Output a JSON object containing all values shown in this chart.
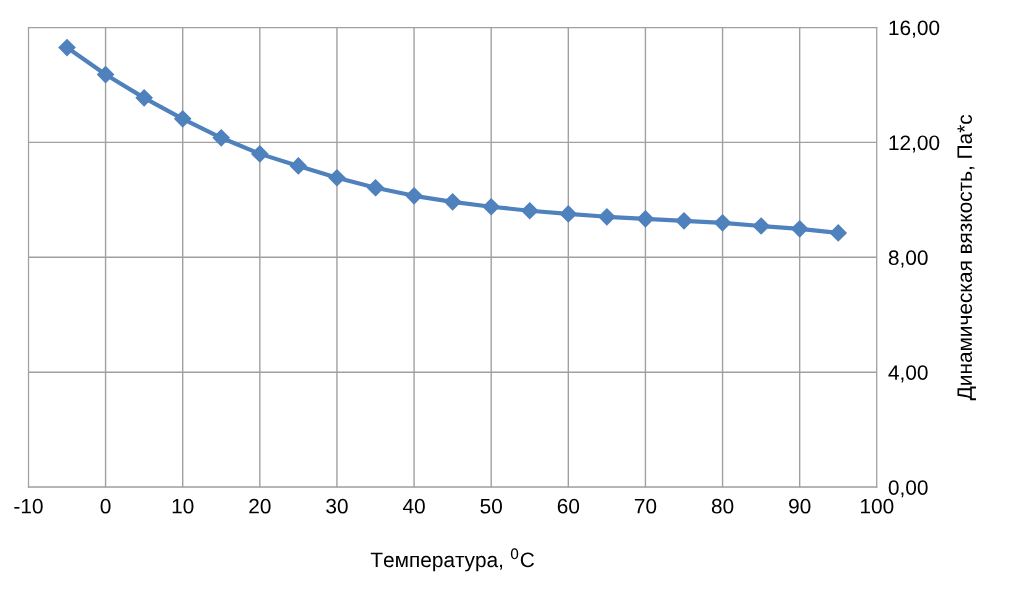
{
  "chart_data": {
    "type": "line",
    "xlabel": "Температура, $^{0}$C",
    "ylabel": "Динамическая вязкость, Па*с",
    "x": [
      -5,
      0,
      5,
      10,
      15,
      20,
      25,
      30,
      35,
      40,
      45,
      50,
      55,
      60,
      65,
      70,
      75,
      80,
      85,
      90,
      95
    ],
    "series": [
      {
        "color": "#4f81bd",
        "values": [
          15.3,
          14.36,
          13.55,
          12.82,
          12.16,
          11.6,
          11.18,
          10.77,
          10.42,
          10.14,
          9.93,
          9.76,
          9.62,
          9.51,
          9.41,
          9.34,
          9.27,
          9.2,
          9.09,
          8.99,
          8.85
        ]
      }
    ],
    "xlim": [
      -10,
      100
    ],
    "xticks": [
      -10,
      0,
      10,
      20,
      30,
      40,
      50,
      60,
      70,
      80,
      90,
      100
    ],
    "ylim": [
      0,
      16
    ],
    "yticks": [
      {
        "value": 0,
        "label": "0,00"
      },
      {
        "value": 4,
        "label": "4,00"
      },
      {
        "value": 8,
        "label": "8,00"
      },
      {
        "value": 12,
        "label": "12,00"
      },
      {
        "value": 16,
        "label": "16,00"
      }
    ],
    "grid": true,
    "marker": "diamond",
    "line_style": "solid",
    "legend": false
  }
}
